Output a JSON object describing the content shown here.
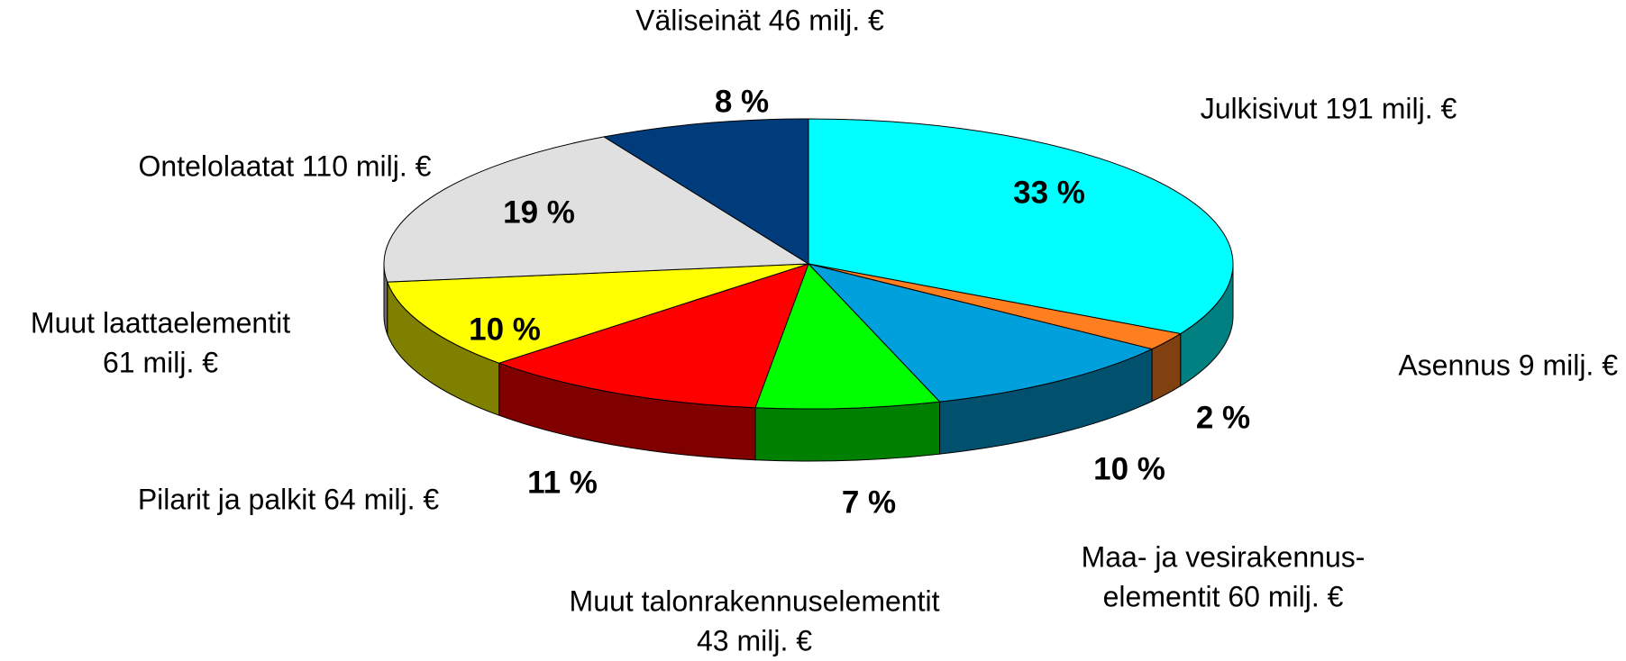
{
  "chart_data": {
    "type": "pie3d",
    "categories": [
      [
        "Julkisivut 191 milj. €"
      ],
      [
        "Asennus 9 milj. €"
      ],
      [
        "Maa- ja vesirakennus-",
        "elementit 60 milj. €"
      ],
      [
        "Muut talonrakennuselementit",
        "43 milj. €"
      ],
      [
        "Pilarit ja palkit 64 milj. €"
      ],
      [
        "Muut laattaelementit",
        "61 milj. €"
      ],
      [
        "Ontelolaatat  110 milj. €"
      ],
      [
        "Väliseinät 46 milj. €"
      ]
    ],
    "values": [
      33,
      2,
      10,
      7,
      11,
      10,
      19,
      8
    ],
    "value_labels": [
      "33 %",
      "2 %",
      "10 %",
      "7 %",
      "11 %",
      "10 %",
      "19 %",
      "8 %"
    ],
    "colors": [
      "#00FFFF",
      "#FF7F20",
      "#00A0DC",
      "#00FF00",
      "#FF0000",
      "#FFFF00",
      "#E0E0E0",
      "#003C7C"
    ]
  }
}
